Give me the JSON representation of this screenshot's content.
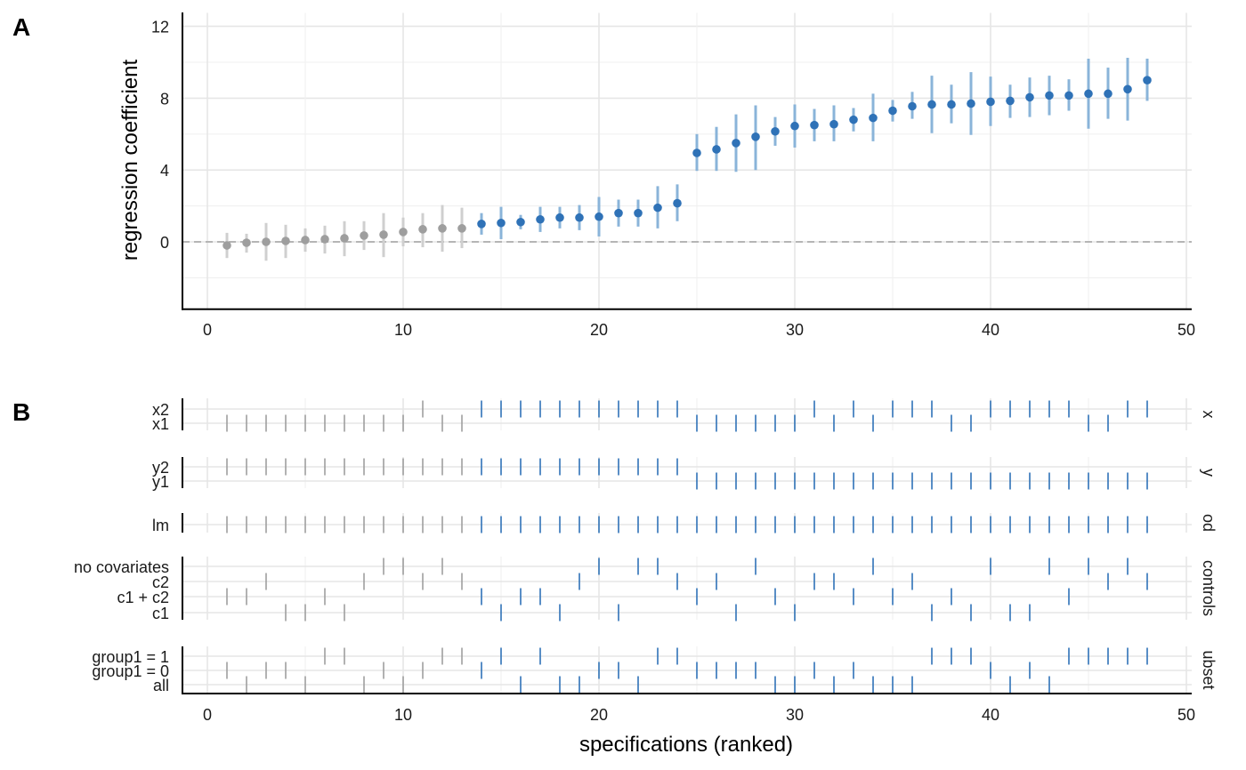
{
  "chart_data": [
    {
      "type": "scatter",
      "panel_label": "A",
      "ylabel": "regression coefficient",
      "xlim": [
        -1,
        50
      ],
      "ylim": [
        -3.75,
        12.75
      ],
      "x_ticks": [
        0,
        10,
        20,
        30,
        40,
        50
      ],
      "y_ticks": [
        0,
        4,
        8,
        12
      ],
      "grid": true,
      "reference_line": 0,
      "colors": {
        "nonsignificant": "#9e9e9e",
        "significant": "#2f72b7",
        "errorbar_significant": "#8ab4d9",
        "errorbar_nonsignificant": "#cfcfcf"
      },
      "points": [
        {
          "x": 1,
          "y": -0.2,
          "lo": -0.9,
          "hi": 0.5,
          "sig": false
        },
        {
          "x": 2,
          "y": -0.05,
          "lo": -0.6,
          "hi": 0.45,
          "sig": false
        },
        {
          "x": 3,
          "y": 0.0,
          "lo": -1.05,
          "hi": 1.05,
          "sig": false
        },
        {
          "x": 4,
          "y": 0.05,
          "lo": -0.9,
          "hi": 0.95,
          "sig": false
        },
        {
          "x": 5,
          "y": 0.1,
          "lo": -0.55,
          "hi": 0.75,
          "sig": false
        },
        {
          "x": 6,
          "y": 0.15,
          "lo": -0.65,
          "hi": 0.9,
          "sig": false
        },
        {
          "x": 7,
          "y": 0.2,
          "lo": -0.8,
          "hi": 1.15,
          "sig": false
        },
        {
          "x": 8,
          "y": 0.35,
          "lo": -0.45,
          "hi": 1.15,
          "sig": false
        },
        {
          "x": 9,
          "y": 0.4,
          "lo": -0.85,
          "hi": 1.6,
          "sig": false
        },
        {
          "x": 10,
          "y": 0.55,
          "lo": -0.25,
          "hi": 1.35,
          "sig": false
        },
        {
          "x": 11,
          "y": 0.7,
          "lo": -0.3,
          "hi": 1.6,
          "sig": false
        },
        {
          "x": 12,
          "y": 0.75,
          "lo": -0.55,
          "hi": 2.05,
          "sig": false
        },
        {
          "x": 13,
          "y": 0.75,
          "lo": -0.35,
          "hi": 1.9,
          "sig": false
        },
        {
          "x": 14,
          "y": 1.0,
          "lo": 0.4,
          "hi": 1.6,
          "sig": true
        },
        {
          "x": 15,
          "y": 1.05,
          "lo": 0.15,
          "hi": 1.95,
          "sig": true
        },
        {
          "x": 16,
          "y": 1.1,
          "lo": 0.7,
          "hi": 1.5,
          "sig": true
        },
        {
          "x": 17,
          "y": 1.25,
          "lo": 0.55,
          "hi": 1.95,
          "sig": true
        },
        {
          "x": 18,
          "y": 1.35,
          "lo": 0.75,
          "hi": 1.95,
          "sig": true
        },
        {
          "x": 19,
          "y": 1.35,
          "lo": 0.65,
          "hi": 2.05,
          "sig": true
        },
        {
          "x": 20,
          "y": 1.4,
          "lo": 0.3,
          "hi": 2.5,
          "sig": true
        },
        {
          "x": 21,
          "y": 1.6,
          "lo": 0.85,
          "hi": 2.35,
          "sig": true
        },
        {
          "x": 22,
          "y": 1.6,
          "lo": 0.85,
          "hi": 2.35,
          "sig": true
        },
        {
          "x": 23,
          "y": 1.9,
          "lo": 0.75,
          "hi": 3.1,
          "sig": true
        },
        {
          "x": 24,
          "y": 2.15,
          "lo": 1.15,
          "hi": 3.2,
          "sig": true
        },
        {
          "x": 25,
          "y": 4.95,
          "lo": 3.95,
          "hi": 6.0,
          "sig": true
        },
        {
          "x": 26,
          "y": 5.15,
          "lo": 3.95,
          "hi": 6.4,
          "sig": true
        },
        {
          "x": 27,
          "y": 5.5,
          "lo": 3.9,
          "hi": 7.1,
          "sig": true
        },
        {
          "x": 28,
          "y": 5.85,
          "lo": 4.0,
          "hi": 7.6,
          "sig": true
        },
        {
          "x": 29,
          "y": 6.15,
          "lo": 5.35,
          "hi": 6.95,
          "sig": true
        },
        {
          "x": 30,
          "y": 6.45,
          "lo": 5.25,
          "hi": 7.65,
          "sig": true
        },
        {
          "x": 31,
          "y": 6.5,
          "lo": 5.6,
          "hi": 7.4,
          "sig": true
        },
        {
          "x": 32,
          "y": 6.55,
          "lo": 5.6,
          "hi": 7.6,
          "sig": true
        },
        {
          "x": 33,
          "y": 6.8,
          "lo": 6.15,
          "hi": 7.45,
          "sig": true
        },
        {
          "x": 34,
          "y": 6.9,
          "lo": 5.6,
          "hi": 8.25,
          "sig": true
        },
        {
          "x": 35,
          "y": 7.3,
          "lo": 6.7,
          "hi": 7.9,
          "sig": true
        },
        {
          "x": 36,
          "y": 7.55,
          "lo": 6.85,
          "hi": 8.35,
          "sig": true
        },
        {
          "x": 37,
          "y": 7.65,
          "lo": 6.05,
          "hi": 9.25,
          "sig": true
        },
        {
          "x": 38,
          "y": 7.65,
          "lo": 6.6,
          "hi": 8.75,
          "sig": true
        },
        {
          "x": 39,
          "y": 7.7,
          "lo": 5.95,
          "hi": 9.45,
          "sig": true
        },
        {
          "x": 40,
          "y": 7.8,
          "lo": 6.45,
          "hi": 9.2,
          "sig": true
        },
        {
          "x": 41,
          "y": 7.85,
          "lo": 6.9,
          "hi": 8.75,
          "sig": true
        },
        {
          "x": 42,
          "y": 8.05,
          "lo": 6.95,
          "hi": 9.15,
          "sig": true
        },
        {
          "x": 43,
          "y": 8.15,
          "lo": 7.05,
          "hi": 9.25,
          "sig": true
        },
        {
          "x": 44,
          "y": 8.15,
          "lo": 7.3,
          "hi": 9.05,
          "sig": true
        },
        {
          "x": 45,
          "y": 8.25,
          "lo": 6.3,
          "hi": 10.2,
          "sig": true
        },
        {
          "x": 46,
          "y": 8.25,
          "lo": 6.85,
          "hi": 9.7,
          "sig": true
        },
        {
          "x": 47,
          "y": 8.5,
          "lo": 6.75,
          "hi": 10.25,
          "sig": true
        },
        {
          "x": 48,
          "y": 9.0,
          "lo": 7.85,
          "hi": 10.2,
          "sig": true
        }
      ]
    },
    {
      "type": "scatter",
      "panel_label": "B",
      "xlabel": "specifications (ranked)",
      "xlim": [
        -1,
        50
      ],
      "x_ticks": [
        0,
        10,
        20,
        30,
        40,
        50
      ],
      "grid": true,
      "facets": [
        {
          "strip": "x",
          "levels": [
            "x2",
            "x1"
          ],
          "rows": {
            "x2": [
              11,
              14,
              15,
              16,
              17,
              18,
              19,
              20,
              21,
              22,
              23,
              24,
              31,
              33,
              35,
              36,
              37,
              40,
              41,
              42,
              43,
              44,
              47,
              48
            ],
            "x1": [
              1,
              2,
              3,
              4,
              5,
              6,
              7,
              8,
              9,
              10,
              12,
              13,
              25,
              26,
              27,
              28,
              29,
              30,
              32,
              34,
              38,
              39,
              45,
              46
            ]
          }
        },
        {
          "strip": "y",
          "levels": [
            "y2",
            "y1"
          ],
          "rows": {
            "y2": [
              1,
              2,
              3,
              4,
              5,
              6,
              7,
              8,
              9,
              10,
              11,
              12,
              13,
              14,
              15,
              16,
              17,
              18,
              19,
              20,
              21,
              22,
              23,
              24
            ],
            "y1": [
              25,
              26,
              27,
              28,
              29,
              30,
              31,
              32,
              33,
              34,
              35,
              36,
              37,
              38,
              39,
              40,
              41,
              42,
              43,
              44,
              45,
              46,
              47,
              48
            ]
          }
        },
        {
          "strip": "od",
          "levels": [
            "lm"
          ],
          "rows": {
            "lm": [
              1,
              2,
              3,
              4,
              5,
              6,
              7,
              8,
              9,
              10,
              11,
              12,
              13,
              14,
              15,
              16,
              17,
              18,
              19,
              20,
              21,
              22,
              23,
              24,
              25,
              26,
              27,
              28,
              29,
              30,
              31,
              32,
              33,
              34,
              35,
              36,
              37,
              38,
              39,
              40,
              41,
              42,
              43,
              44,
              45,
              46,
              47,
              48
            ]
          }
        },
        {
          "strip": "controls",
          "levels": [
            "no covariates",
            "c2",
            "c1 + c2",
            "c1"
          ],
          "rows": {
            "no covariates": [
              9,
              10,
              12,
              20,
              22,
              23,
              28,
              34,
              40,
              43,
              45,
              47
            ],
            "c2": [
              3,
              8,
              11,
              13,
              19,
              24,
              26,
              31,
              32,
              36,
              46,
              48
            ],
            "c1 + c2": [
              1,
              2,
              6,
              14,
              16,
              17,
              25,
              29,
              33,
              35,
              38,
              44
            ],
            "c1": [
              4,
              5,
              7,
              15,
              18,
              21,
              27,
              30,
              37,
              39,
              41,
              42
            ]
          }
        },
        {
          "strip": "ubset",
          "levels": [
            "group1 = 1",
            "group1 = 0",
            "all"
          ],
          "rows": {
            "group1 = 1": [
              6,
              7,
              12,
              13,
              15,
              17,
              23,
              24,
              37,
              38,
              39,
              44,
              45,
              46,
              47,
              48
            ],
            "group1 = 0": [
              1,
              3,
              4,
              9,
              11,
              14,
              20,
              21,
              25,
              26,
              27,
              28,
              31,
              33,
              40,
              42
            ],
            "all": [
              2,
              5,
              8,
              10,
              16,
              18,
              19,
              22,
              29,
              30,
              32,
              34,
              35,
              36,
              41,
              43
            ]
          }
        }
      ]
    }
  ]
}
